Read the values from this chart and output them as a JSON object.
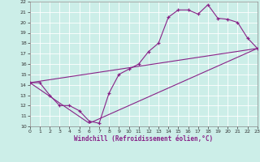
{
  "title": "",
  "xlabel": "Windchill (Refroidissement éolien,°C)",
  "ylabel": "",
  "xlim": [
    0,
    23
  ],
  "ylim": [
    10,
    22
  ],
  "xticks": [
    0,
    1,
    2,
    3,
    4,
    5,
    6,
    7,
    8,
    9,
    10,
    11,
    12,
    13,
    14,
    15,
    16,
    17,
    18,
    19,
    20,
    21,
    22,
    23
  ],
  "yticks": [
    10,
    11,
    12,
    13,
    14,
    15,
    16,
    17,
    18,
    19,
    20,
    21,
    22
  ],
  "bg_color": "#cceee8",
  "grid_color": "#aadddd",
  "line_color": "#882288",
  "line1_x": [
    0,
    1,
    2,
    3,
    4,
    5,
    6,
    7,
    8,
    9,
    10,
    11,
    12,
    13,
    14,
    15,
    16,
    17,
    18,
    19,
    20,
    21,
    22,
    23
  ],
  "line1_y": [
    14.2,
    14.2,
    13.0,
    12.0,
    12.0,
    11.5,
    10.5,
    10.3,
    13.2,
    15.0,
    15.5,
    16.0,
    17.2,
    18.0,
    20.5,
    21.2,
    21.2,
    20.8,
    21.7,
    20.4,
    20.3,
    20.0,
    18.5,
    17.5
  ],
  "line2_x": [
    0,
    23
  ],
  "line2_y": [
    14.2,
    17.5
  ],
  "line3_x": [
    0,
    6,
    23
  ],
  "line3_y": [
    14.2,
    10.3,
    17.5
  ]
}
